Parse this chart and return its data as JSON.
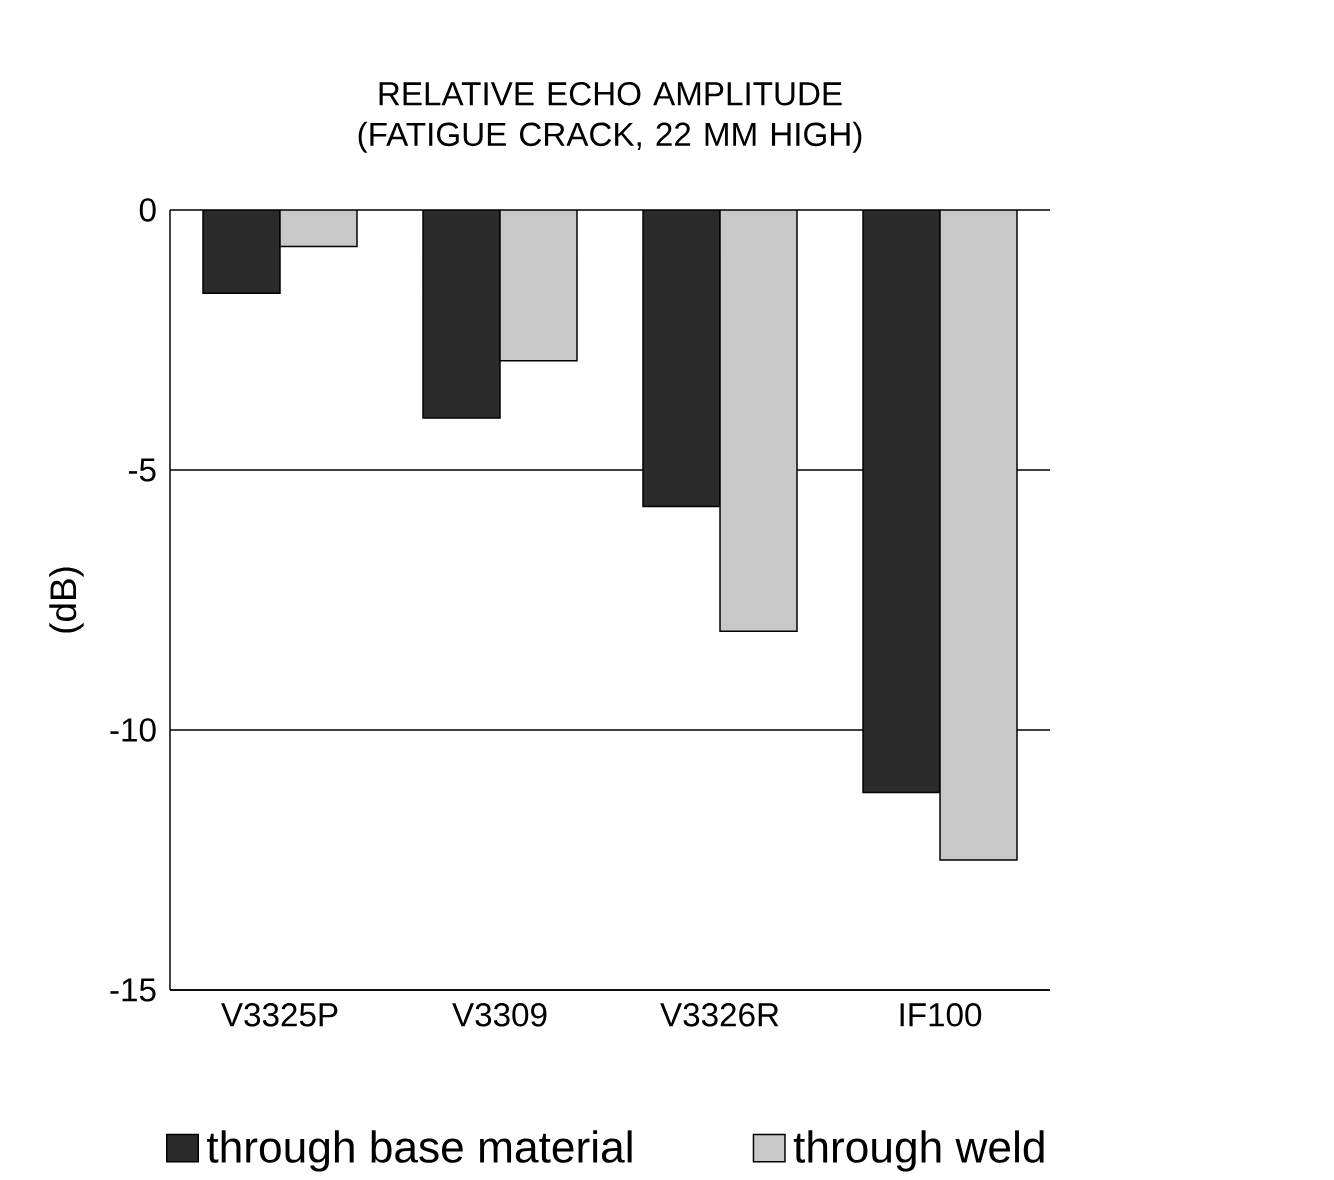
{
  "chart_data": {
    "type": "bar",
    "title": "RELATIVE ECHO AMPLITUDE (FATIGUE CRACK, 22 MM HIGH)",
    "ylabel": "(dB)",
    "categories": [
      "V3325P",
      "V3309",
      "V3326R",
      "IF100"
    ],
    "series": [
      {
        "name": "through base material",
        "color": "#2b2b2b",
        "values": [
          -1.6,
          -4.0,
          -5.7,
          -11.2
        ]
      },
      {
        "name": "through weld",
        "color": "#c8c8c8",
        "values": [
          -0.7,
          -2.9,
          -8.1,
          -12.5
        ]
      }
    ],
    "ylim": [
      -15,
      0
    ],
    "yticks": [
      -15,
      -10,
      -5,
      0
    ],
    "grid": "y",
    "legend": "bottom"
  }
}
